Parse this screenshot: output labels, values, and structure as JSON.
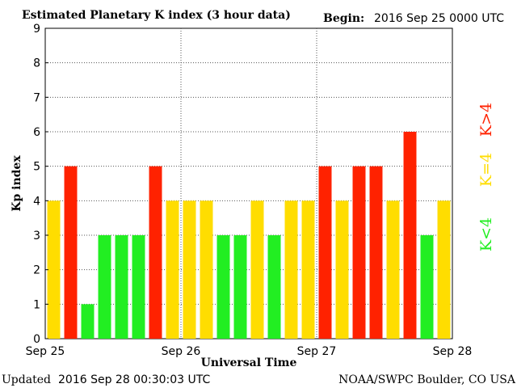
{
  "header": {
    "title": "Estimated Planetary K index (3 hour data)",
    "begin_label": "Begin:",
    "begin_value": "2016 Sep 25 0000 UTC"
  },
  "footer": {
    "updated_label": "Updated",
    "updated_value": "2016 Sep 28 00:30:03 UTC",
    "source": "NOAA/SWPC Boulder, CO USA"
  },
  "legend": [
    {
      "label": "K<4",
      "color": "#22ee22"
    },
    {
      "label": "K=4",
      "color": "#ffdd00"
    },
    {
      "label": "K>4",
      "color": "#ff2200"
    }
  ],
  "colors": {
    "below4": "#22ee22",
    "equal4": "#ffdd00",
    "above4": "#ff2200"
  },
  "chart_data": {
    "type": "bar",
    "xlabel": "Universal Time",
    "ylabel": "Kp index",
    "ylim": [
      0,
      9
    ],
    "yticks": [
      0,
      1,
      2,
      3,
      4,
      5,
      6,
      7,
      8,
      9
    ],
    "x_tick_labels": [
      "Sep 25",
      "Sep 26",
      "Sep 27",
      "Sep 28"
    ],
    "grid": "dotted horizontal lines at each integer; dotted vertical lines at day boundaries",
    "bars_per_day": 8,
    "values": [
      4,
      5,
      1,
      3,
      3,
      3,
      5,
      4,
      4,
      4,
      3,
      3,
      4,
      3,
      4,
      4,
      5,
      4,
      5,
      5,
      4,
      6,
      3,
      4
    ]
  }
}
